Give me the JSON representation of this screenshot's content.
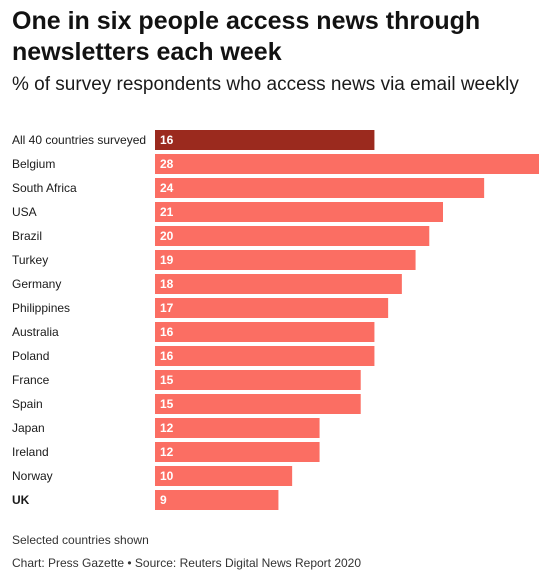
{
  "title": "One in six people access news through newsletters each week",
  "subtitle": "% of survey respondents who access news via email weekly",
  "footnote": "Selected countries shown",
  "source": "Chart: Press Gazette • Source: Reuters Digital News Report 2020",
  "colors": {
    "highlight": "#9b2a1e",
    "bar": "#fb6e63",
    "label": "#ffffff",
    "text": "#1a1a1a"
  },
  "chart_data": {
    "type": "bar",
    "orientation": "horizontal",
    "categories": [
      "All 40 countries surveyed",
      "Belgium",
      "South Africa",
      "USA",
      "Brazil",
      "Turkey",
      "Germany",
      "Philippines",
      "Australia",
      "Poland",
      "France",
      "Spain",
      "Japan",
      "Ireland",
      "Norway",
      "UK"
    ],
    "values": [
      16,
      28,
      24,
      21,
      20,
      19,
      18,
      17,
      16,
      16,
      15,
      15,
      12,
      12,
      10,
      9
    ],
    "highlighted_category": "All 40 countries surveyed",
    "bold_category": "UK",
    "xlim": [
      0,
      28
    ],
    "data_labels": true,
    "grid": false,
    "legend": "none"
  }
}
